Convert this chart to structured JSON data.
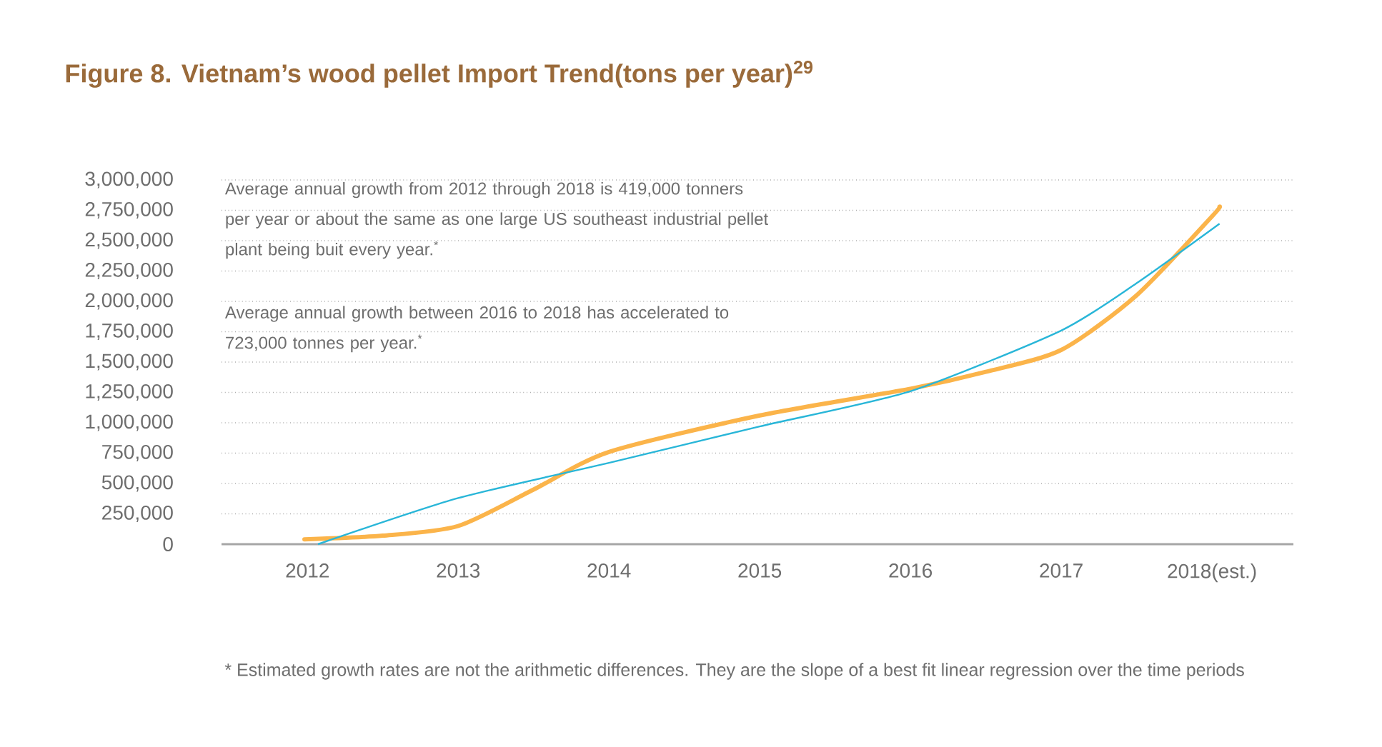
{
  "chart_data": {
    "type": "line",
    "title": "Figure 8. Vietnam’s wood pellet Import Trend(tons per year)$^{29}$",
    "series": [
      {
        "color": "#fbb44a",
        "x": [
          2011.98,
          2012.5,
          2013,
          2013.5,
          2014,
          2015,
          2016,
          2016.5,
          2017,
          2017.5,
          2018,
          2018.05
        ],
        "values": [
          40000,
          70000,
          150000,
          450000,
          760000,
          1060000,
          1280000,
          1420000,
          1600000,
          2050000,
          2700000,
          2780000
        ]
      },
      {
        "color": "#29b6d8",
        "x": [
          2012.07,
          2013,
          2014,
          2015,
          2016,
          2017,
          2017.5,
          2018.05
        ],
        "values": [
          0,
          380000,
          670000,
          970000,
          1260000,
          1760000,
          2150000,
          2640000
        ]
      }
    ],
    "xlim": [
      2011.43,
      2018.54
    ],
    "xticks": [
      2012,
      2013,
      2014,
      2015,
      2016,
      2017,
      {
        "value": 2018,
        "label": "2018(est.)"
      }
    ],
    "ylim": [
      0,
      3000000
    ],
    "yticks": [
      {
        "value": 0,
        "label": "0"
      },
      {
        "value": 250000,
        "label": "250,000"
      },
      {
        "value": 500000,
        "label": "500,000"
      },
      {
        "value": 750000,
        "label": "750,000"
      },
      {
        "value": 1000000,
        "label": "1,000,000"
      },
      {
        "value": 1250000,
        "label": "1,250,000"
      },
      {
        "value": 1500000,
        "label": "1,500,000"
      },
      {
        "value": 1750000,
        "label": "1,750,000"
      },
      {
        "value": 2000000,
        "label": "2,000,000"
      },
      {
        "value": 2250000,
        "label": "2,250,000"
      },
      {
        "value": 2500000,
        "label": "2,500,000"
      },
      {
        "value": 2750000,
        "label": "2,750,000"
      },
      {
        "value": 3000000,
        "label": "3,000,000"
      }
    ],
    "grid": "y",
    "annotations": [
      "Average annual growth from 2012 through 2018 is 419,000 tonners per year or about the same as one large US southeast industrial pellet plant being buit every year.$^{*}$",
      "Average annual growth between 2016 to 2018 has accelerated to 723,000 tonnes per year.$^{*}$",
      "* Estimated growth rates are not the arithmetic differences. They are the slope of a best fit linear regression over the time periods"
    ]
  }
}
